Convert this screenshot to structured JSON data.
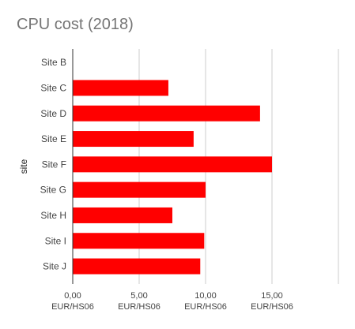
{
  "chart_data": {
    "type": "bar",
    "orientation": "horizontal",
    "title": "CPU cost (2018)",
    "xlabel": "",
    "ylabel": "site",
    "categories": [
      "Site B",
      "Site C",
      "Site D",
      "Site E",
      "Site F",
      "Site G",
      "Site H",
      "Site I",
      "Site J"
    ],
    "values": [
      0,
      7.2,
      14.1,
      9.1,
      15.0,
      10.0,
      7.5,
      9.9,
      9.6
    ],
    "xlim": [
      0,
      20
    ],
    "xticks": [
      {
        "value": 0,
        "label": "0,00",
        "unit": "EUR/HS06"
      },
      {
        "value": 5,
        "label": "5,00",
        "unit": "EUR/HS06"
      },
      {
        "value": 10,
        "label": "10,00",
        "unit": "EUR/HS06"
      },
      {
        "value": 15,
        "label": "15,00",
        "unit": "EUR/HS06"
      },
      {
        "value": 20,
        "label": "",
        "unit": ""
      }
    ],
    "grid": true,
    "legend": "none",
    "bar_color": "#ff0000",
    "grid_color": "#cccccc",
    "axis_color": "#333333",
    "label_color": "#444444",
    "title_color": "#757575"
  }
}
